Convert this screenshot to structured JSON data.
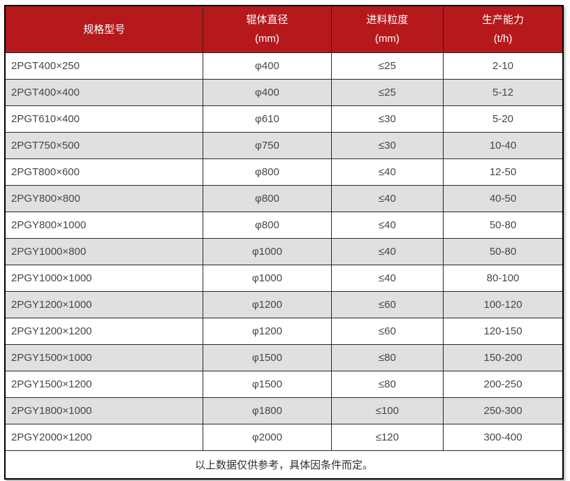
{
  "colors": {
    "header_bg": "#b5191c",
    "header_text": "#ffffff",
    "stripe_bg": "#e0e0e0",
    "body_text": "#43474b",
    "grid_border": "#262626"
  },
  "chart_data": {
    "type": "table",
    "header": [
      {
        "label": "规格型号",
        "unit": ""
      },
      {
        "label": "辊体直径",
        "unit": "(mm)"
      },
      {
        "label": "进料粒度",
        "unit": "(mm)"
      },
      {
        "label": "生产能力",
        "unit": "(t/h)"
      }
    ],
    "rows": [
      [
        "2PGT400×250",
        "φ400",
        "≤25",
        "2-10"
      ],
      [
        "2PGT400×400",
        "φ400",
        "≤25",
        "5-12"
      ],
      [
        "2PGT610×400",
        "φ610",
        "≤30",
        "5-20"
      ],
      [
        "2PGT750×500",
        "φ750",
        "≤30",
        "10-40"
      ],
      [
        "2PGT800×600",
        "φ800",
        "≤40",
        "12-50"
      ],
      [
        "2PGY800×800",
        "φ800",
        "≤40",
        "40-50"
      ],
      [
        "2PGY800×1000",
        "φ800",
        "≤40",
        "50-80"
      ],
      [
        "2PGY1000×800",
        "φ1000",
        "≤40",
        "50-80"
      ],
      [
        "2PGY1000×1000",
        "φ1000",
        "≤40",
        "80-100"
      ],
      [
        "2PGY1200×1000",
        "φ1200",
        "≤60",
        "100-120"
      ],
      [
        "2PGY1200×1200",
        "φ1200",
        "≤60",
        "120-150"
      ],
      [
        "2PGY1500×1000",
        "φ1500",
        "≤80",
        "150-200"
      ],
      [
        "2PGY1500×1200",
        "φ1500",
        "≤80",
        "200-250"
      ],
      [
        "2PGY1800×1000",
        "φ1800",
        "≤100",
        "250-300"
      ],
      [
        "2PGY2000×1200",
        "φ2000",
        "≤120",
        "300-400"
      ]
    ],
    "footnote": "以上数据仅供参考，具体因条件而定。"
  }
}
